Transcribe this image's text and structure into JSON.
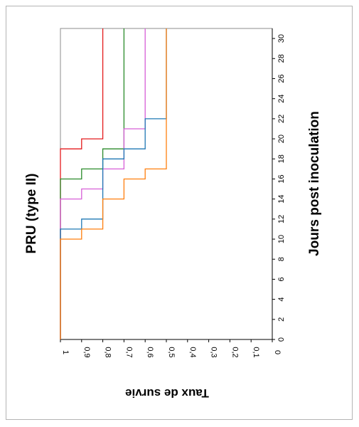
{
  "chart_data": {
    "type": "line",
    "step": true,
    "title": "PRU (type II)",
    "xlabel": "Jours post inoculation",
    "ylabel": "Taux de survie",
    "xlim": [
      0,
      30
    ],
    "ylim": [
      0,
      1
    ],
    "x_ticks": [
      "0",
      "2",
      "4",
      "6",
      "8",
      "10",
      "12",
      "14",
      "16",
      "18",
      "20",
      "22",
      "24",
      "26",
      "28",
      "30"
    ],
    "y_ticks": [
      "0",
      "0,1",
      "0,2",
      "0,3",
      "0,4",
      "0,5",
      "0,6",
      "0,7",
      "0,8",
      "0,9",
      "1"
    ],
    "grid": false,
    "orientation": "rotated 90 degrees clockwise",
    "series": [
      {
        "color": "#e41a1c",
        "points": [
          [
            0,
            1
          ],
          [
            19,
            1
          ],
          [
            19,
            0.9
          ],
          [
            20,
            0.9
          ],
          [
            20,
            0.8
          ],
          [
            31,
            0.8
          ]
        ]
      },
      {
        "color": "#2a8a2a",
        "points": [
          [
            0,
            1
          ],
          [
            16,
            1
          ],
          [
            16,
            0.9
          ],
          [
            17,
            0.9
          ],
          [
            17,
            0.8
          ],
          [
            19,
            0.8
          ],
          [
            19,
            0.7
          ],
          [
            31,
            0.7
          ]
        ]
      },
      {
        "color": "#d75fd7",
        "points": [
          [
            0,
            1
          ],
          [
            14,
            1
          ],
          [
            14,
            0.9
          ],
          [
            15,
            0.9
          ],
          [
            15,
            0.8
          ],
          [
            17,
            0.8
          ],
          [
            17,
            0.7
          ],
          [
            21,
            0.7
          ],
          [
            21,
            0.6
          ],
          [
            31,
            0.6
          ]
        ]
      },
      {
        "color": "#1f78b4",
        "points": [
          [
            0,
            1
          ],
          [
            11,
            1
          ],
          [
            11,
            0.9
          ],
          [
            12,
            0.9
          ],
          [
            12,
            0.8
          ],
          [
            18,
            0.8
          ],
          [
            18,
            0.7
          ],
          [
            19,
            0.7
          ],
          [
            19,
            0.6
          ],
          [
            22,
            0.6
          ],
          [
            22,
            0.5
          ],
          [
            31,
            0.5
          ]
        ]
      },
      {
        "color": "#ff7f0e",
        "points": [
          [
            0,
            1
          ],
          [
            10,
            1
          ],
          [
            10,
            0.9
          ],
          [
            11,
            0.9
          ],
          [
            11,
            0.8
          ],
          [
            14,
            0.8
          ],
          [
            14,
            0.7
          ],
          [
            16,
            0.7
          ],
          [
            16,
            0.6
          ],
          [
            17,
            0.6
          ],
          [
            17,
            0.5
          ],
          [
            31,
            0.5
          ]
        ]
      }
    ]
  }
}
